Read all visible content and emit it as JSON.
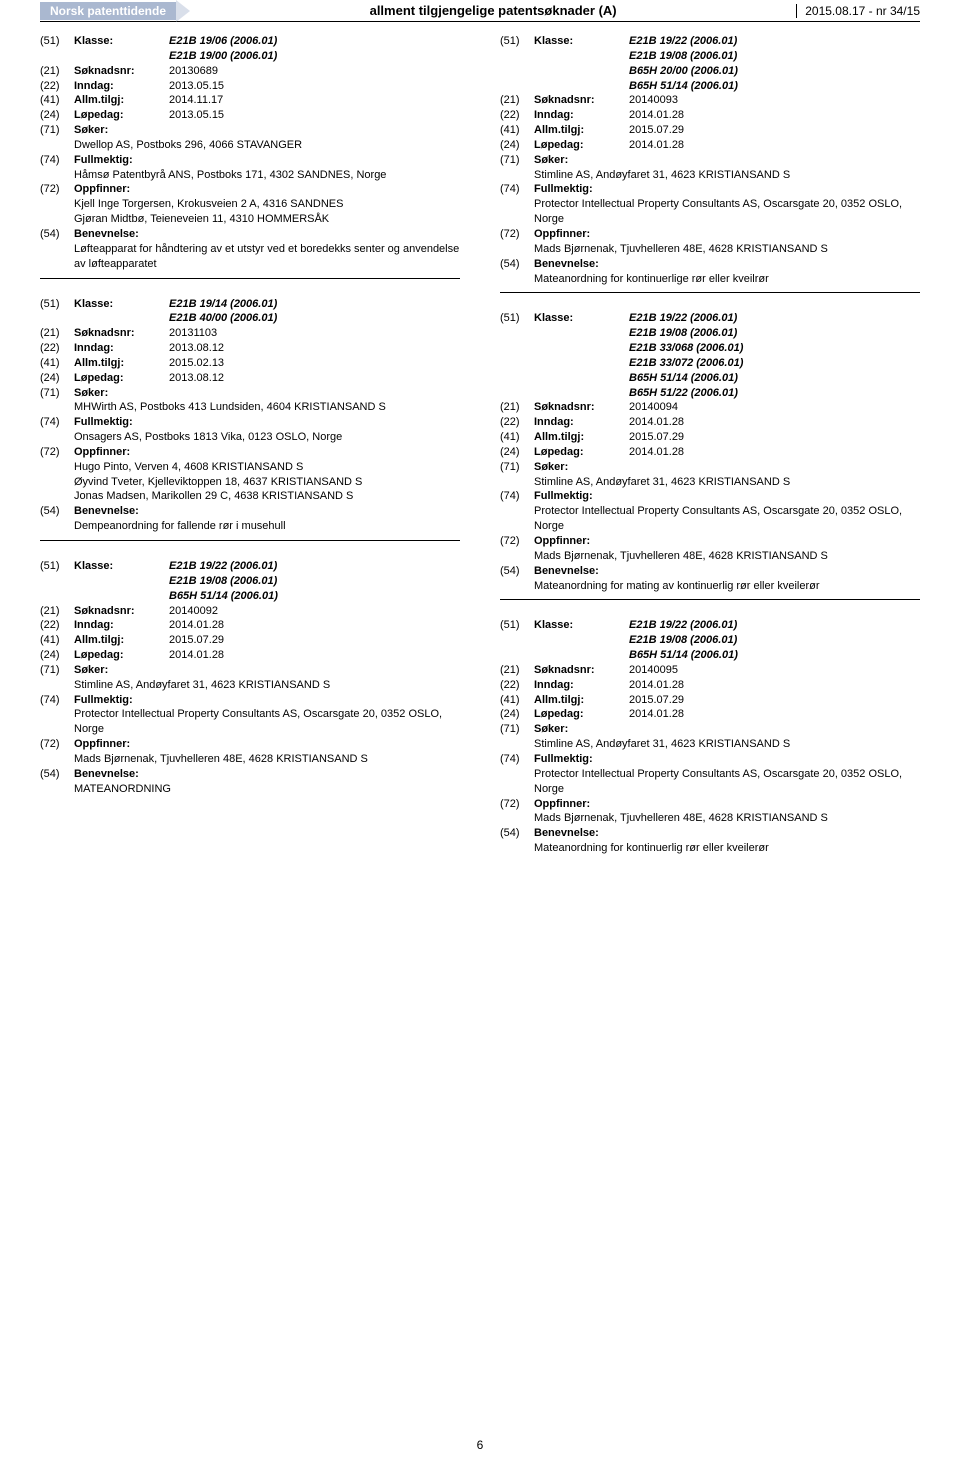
{
  "header": {
    "brand": "Norsk patenttidende",
    "title": "allment tilgjengelige patentsøknader (A)",
    "meta": "2015.08.17 - nr 34/15"
  },
  "pageNumber": "6",
  "entries": [
    {
      "col": 0,
      "klasse": [
        "E21B 19/06  (2006.01)",
        "E21B 19/00  (2006.01)"
      ],
      "soknadsnr": "20130689",
      "inndag": "2013.05.15",
      "allmtilgj": "2014.11.17",
      "lopedag": "2013.05.15",
      "soker": [
        "Dwellop AS, Postboks 296, 4066 STAVANGER"
      ],
      "fullmektig": [
        "Håmsø Patentbyrå ANS, Postboks 171, 4302 SANDNES, Norge"
      ],
      "oppfinner": [
        "Kjell Inge Torgersen, Krokusveien 2 A, 4316 SANDNES",
        "Gjøran Midtbø, Teieneveien 11, 4310 HOMMERSÅK"
      ],
      "benevnelse": "Løfteapparat for håndtering av et utstyr ved et boredekks senter og anvendelse av løfteapparatet"
    },
    {
      "col": 0,
      "klasse": [
        "E21B 19/14  (2006.01)",
        "E21B 40/00  (2006.01)"
      ],
      "soknadsnr": "20131103",
      "inndag": "2013.08.12",
      "allmtilgj": "2015.02.13",
      "lopedag": "2013.08.12",
      "soker": [
        "MHWirth AS, Postboks 413 Lundsiden, 4604 KRISTIANSAND S"
      ],
      "fullmektig": [
        "Onsagers AS, Postboks 1813 Vika, 0123 OSLO, Norge"
      ],
      "oppfinner": [
        "Hugo Pinto, Verven 4, 4608 KRISTIANSAND S",
        "Øyvind Tveter, Kjelleviktoppen 18, 4637 KRISTIANSAND S",
        "Jonas Madsen, Marikollen 29 C, 4638 KRISTIANSAND S"
      ],
      "benevnelse": "Dempeanordning for fallende rør i musehull"
    },
    {
      "col": 0,
      "klasse": [
        "E21B 19/22  (2006.01)",
        "E21B 19/08  (2006.01)",
        "B65H 51/14  (2006.01)"
      ],
      "soknadsnr": "20140092",
      "inndag": "2014.01.28",
      "allmtilgj": "2015.07.29",
      "lopedag": "2014.01.28",
      "soker": [
        "Stimline AS, Andøyfaret 31, 4623 KRISTIANSAND S"
      ],
      "fullmektig": [
        "Protector Intellectual Property Consultants AS, Oscarsgate 20, 0352 OSLO, Norge"
      ],
      "oppfinner": [
        "Mads Bjørnenak, Tjuvhelleren 48E, 4628 KRISTIANSAND S"
      ],
      "benevnelse": "MATEANORDNING"
    },
    {
      "col": 1,
      "klasse": [
        "E21B 19/22  (2006.01)",
        "E21B 19/08  (2006.01)",
        "B65H 20/00  (2006.01)",
        "B65H 51/14  (2006.01)"
      ],
      "soknadsnr": "20140093",
      "inndag": "2014.01.28",
      "allmtilgj": "2015.07.29",
      "lopedag": "2014.01.28",
      "soker": [
        "Stimline AS, Andøyfaret 31, 4623 KRISTIANSAND S"
      ],
      "fullmektig": [
        "Protector Intellectual Property Consultants AS, Oscarsgate 20, 0352 OSLO, Norge"
      ],
      "oppfinner": [
        "Mads Bjørnenak, Tjuvhelleren 48E, 4628 KRISTIANSAND S"
      ],
      "benevnelse": "Mateanordning for kontinuerlige rør eller kveilrør"
    },
    {
      "col": 1,
      "klasse": [
        "E21B 19/22  (2006.01)",
        "E21B 19/08  (2006.01)",
        "E21B 33/068  (2006.01)",
        "E21B 33/072  (2006.01)",
        "B65H 51/14  (2006.01)",
        "B65H 51/22  (2006.01)"
      ],
      "soknadsnr": "20140094",
      "inndag": "2014.01.28",
      "allmtilgj": "2015.07.29",
      "lopedag": "2014.01.28",
      "soker": [
        "Stimline AS, Andøyfaret 31, 4623 KRISTIANSAND S"
      ],
      "fullmektig": [
        "Protector Intellectual Property Consultants AS, Oscarsgate 20, 0352 OSLO, Norge"
      ],
      "oppfinner": [
        "Mads Bjørnenak, Tjuvhelleren 48E, 4628 KRISTIANSAND S"
      ],
      "benevnelse": "Mateanordning for mating av kontinuerlig rør eller kveilerør"
    },
    {
      "col": 1,
      "klasse": [
        "E21B 19/22  (2006.01)",
        "E21B 19/08  (2006.01)",
        "B65H 51/14  (2006.01)"
      ],
      "soknadsnr": "20140095",
      "inndag": "2014.01.28",
      "allmtilgj": "2015.07.29",
      "lopedag": "2014.01.28",
      "soker": [
        "Stimline AS, Andøyfaret 31, 4623 KRISTIANSAND S"
      ],
      "fullmektig": [
        "Protector Intellectual Property Consultants AS, Oscarsgate 20, 0352 OSLO, Norge"
      ],
      "oppfinner": [
        "Mads Bjørnenak, Tjuvhelleren 48E, 4628 KRISTIANSAND S"
      ],
      "benevnelse": "Mateanordning for kontinuerlig rør eller kveilerør"
    }
  ],
  "labels": {
    "klasse": "Klasse:",
    "soknadsnr": "Søknadsnr:",
    "inndag": "Inndag:",
    "allmtilgj": "Allm.tilgj:",
    "lopedag": "Løpedag:",
    "soker": "Søker:",
    "fullmektig": "Fullmektig:",
    "oppfinner": "Oppfinner:",
    "benevnelse": "Benevnelse:"
  },
  "tags": {
    "klasse": "(51)",
    "soknadsnr": "(21)",
    "inndag": "(22)",
    "allmtilgj": "(41)",
    "lopedag": "(24)",
    "soker": "(71)",
    "fullmektig": "(74)",
    "oppfinner": "(72)",
    "benevnelse": "(54)"
  }
}
